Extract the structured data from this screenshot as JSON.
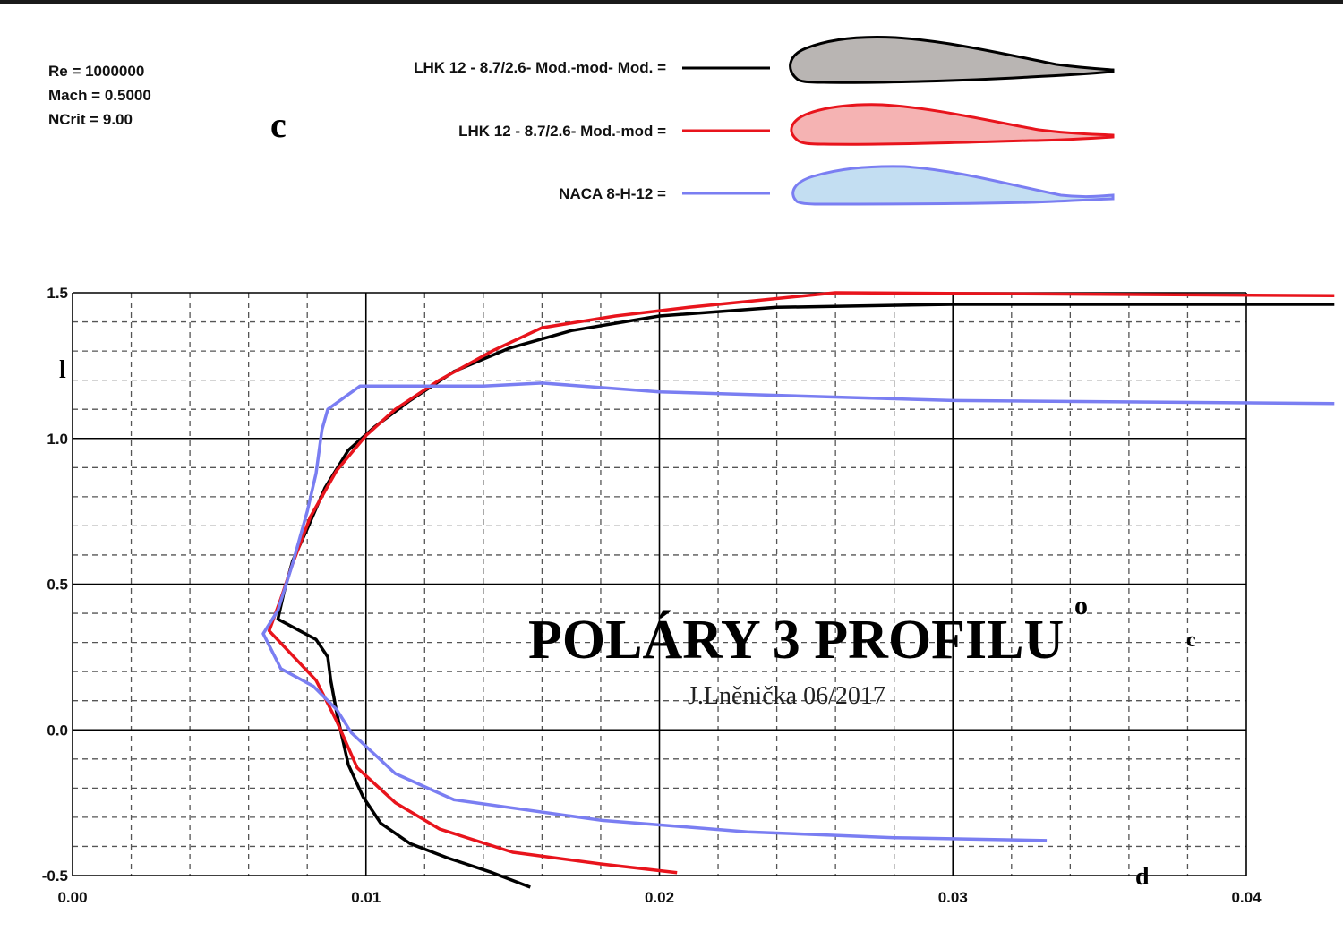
{
  "params": {
    "re": "Re = 1000000",
    "mach": "Mach = 0.5000",
    "ncrit": "NCrit = 9.00"
  },
  "legend": [
    {
      "label": "LHK  12 - 8.7/2.6- Mod.-mod- Mod. =",
      "color": "#000000",
      "fill": "#b9b5b3"
    },
    {
      "label": "LHK  12 - 8.7/2.6- Mod.-mod =",
      "color": "#e8141c",
      "fill": "#f5b3b3"
    },
    {
      "label": "NACA 8-H-12 =",
      "color": "#7a7ef2",
      "fill": "#c3def2"
    }
  ],
  "annotations": {
    "c_top": "c",
    "l_axis": "l",
    "title": "POLÁRY  3  PROFILU",
    "title_ring": "o",
    "title_c": "c",
    "author": "J.Lněnička  06/2017",
    "d_axis": "d"
  },
  "chart_data": {
    "type": "line",
    "xlim": [
      0,
      0.04
    ],
    "ylim": [
      -0.5,
      1.5
    ],
    "x_ticks": [
      "0.00",
      "0.01",
      "0.02",
      "0.03",
      "0.04"
    ],
    "y_ticks": [
      "-0.5",
      "0.0",
      "0.5",
      "1.0",
      "1.5"
    ],
    "grid": true,
    "series": [
      {
        "name": "LHK  12 - 8.7/2.6- Mod.-mod- Mod. =",
        "color": "#000000",
        "points": [
          [
            0.0156,
            -0.54
          ],
          [
            0.0143,
            -0.49
          ],
          [
            0.0128,
            -0.44
          ],
          [
            0.0115,
            -0.39
          ],
          [
            0.0105,
            -0.32
          ],
          [
            0.0099,
            -0.23
          ],
          [
            0.0094,
            -0.12
          ],
          [
            0.0092,
            -0.03
          ],
          [
            0.009,
            0.06
          ],
          [
            0.0088,
            0.17
          ],
          [
            0.0087,
            0.25
          ],
          [
            0.0083,
            0.31
          ],
          [
            0.007,
            0.38
          ],
          [
            0.0072,
            0.47
          ],
          [
            0.0075,
            0.58
          ],
          [
            0.008,
            0.69
          ],
          [
            0.0086,
            0.83
          ],
          [
            0.0094,
            0.96
          ],
          [
            0.0103,
            1.04
          ],
          [
            0.0115,
            1.13
          ],
          [
            0.013,
            1.23
          ],
          [
            0.0149,
            1.31
          ],
          [
            0.017,
            1.37
          ],
          [
            0.02,
            1.42
          ],
          [
            0.024,
            1.45
          ],
          [
            0.03,
            1.46
          ],
          [
            0.043,
            1.46
          ]
        ]
      },
      {
        "name": "LHK  12 - 8.7/2.6- Mod.-mod =",
        "color": "#e8141c",
        "points": [
          [
            0.0206,
            -0.49
          ],
          [
            0.018,
            -0.46
          ],
          [
            0.015,
            -0.42
          ],
          [
            0.0125,
            -0.34
          ],
          [
            0.011,
            -0.25
          ],
          [
            0.0097,
            -0.13
          ],
          [
            0.009,
            0.03
          ],
          [
            0.0083,
            0.17
          ],
          [
            0.0067,
            0.34
          ],
          [
            0.0071,
            0.45
          ],
          [
            0.0075,
            0.57
          ],
          [
            0.0081,
            0.73
          ],
          [
            0.009,
            0.89
          ],
          [
            0.01,
            1.01
          ],
          [
            0.011,
            1.1
          ],
          [
            0.0125,
            1.2
          ],
          [
            0.0143,
            1.3
          ],
          [
            0.016,
            1.38
          ],
          [
            0.0185,
            1.42
          ],
          [
            0.021,
            1.45
          ],
          [
            0.026,
            1.5
          ],
          [
            0.043,
            1.49
          ]
        ]
      },
      {
        "name": "NACA 8-H-12 =",
        "color": "#7a7ef2",
        "points": [
          [
            0.0332,
            -0.38
          ],
          [
            0.028,
            -0.37
          ],
          [
            0.023,
            -0.35
          ],
          [
            0.018,
            -0.31
          ],
          [
            0.013,
            -0.24
          ],
          [
            0.011,
            -0.15
          ],
          [
            0.0095,
            -0.01
          ],
          [
            0.009,
            0.07
          ],
          [
            0.0082,
            0.15
          ],
          [
            0.0071,
            0.21
          ],
          [
            0.0065,
            0.33
          ],
          [
            0.007,
            0.41
          ],
          [
            0.0075,
            0.57
          ],
          [
            0.008,
            0.75
          ],
          [
            0.0083,
            0.88
          ],
          [
            0.0085,
            1.03
          ],
          [
            0.0087,
            1.1
          ],
          [
            0.0098,
            1.18
          ],
          [
            0.014,
            1.18
          ],
          [
            0.016,
            1.19
          ],
          [
            0.02,
            1.16
          ],
          [
            0.03,
            1.13
          ],
          [
            0.043,
            1.12
          ]
        ]
      }
    ]
  }
}
